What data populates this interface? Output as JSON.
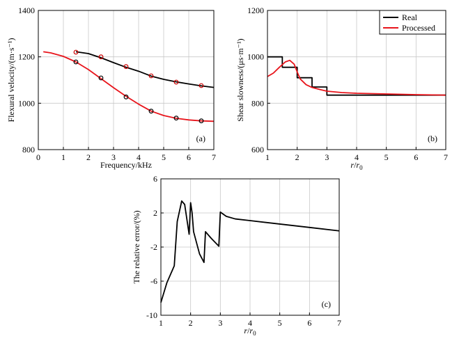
{
  "chart_data": [
    {
      "id": "a",
      "type": "line",
      "panel_label": "(a)",
      "xlabel": "Frequency/kHz",
      "ylabel": "Flexural velocity/(m·s⁻¹)",
      "xlim": [
        0,
        7
      ],
      "ylim": [
        800,
        1400
      ],
      "xticks": [
        0,
        1,
        2,
        3,
        4,
        5,
        6,
        7
      ],
      "yticks": [
        800,
        1000,
        1200,
        1400
      ],
      "grid": true,
      "series": [
        {
          "color": "#000000",
          "line_x": [
            1.5,
            2.0,
            2.5,
            3.0,
            3.5,
            4.0,
            4.5,
            5.0,
            5.5,
            6.0,
            6.5,
            7.0
          ],
          "line_y": [
            1222,
            1214,
            1196,
            1175,
            1155,
            1138,
            1117,
            1103,
            1092,
            1083,
            1075,
            1068
          ],
          "markers_x": [
            1.5,
            2.5,
            3.5,
            4.5,
            5.5,
            6.5
          ],
          "markers_y": [
            1220,
            1200,
            1158,
            1118,
            1091,
            1076
          ],
          "marker_color": "#cc0000"
        },
        {
          "color": "#e8141b",
          "line_x": [
            0.2,
            0.5,
            1.0,
            1.5,
            2.0,
            2.5,
            3.0,
            3.5,
            4.0,
            4.5,
            5.0,
            5.5,
            6.0,
            6.5,
            7.0
          ],
          "line_y": [
            1222,
            1217,
            1202,
            1178,
            1145,
            1106,
            1067,
            1030,
            996,
            966,
            947,
            935,
            928,
            924,
            922
          ],
          "markers_x": [
            1.5,
            2.5,
            3.5,
            4.5,
            5.5,
            6.5
          ],
          "markers_y": [
            1178,
            1109,
            1027,
            966,
            936,
            924
          ],
          "marker_color": "#000000"
        }
      ]
    },
    {
      "id": "b",
      "type": "line",
      "panel_label": "(b)",
      "xlabel_main": "r",
      "xlabel_div": "/",
      "xlabel_sub_base": "r",
      "xlabel_sub": "0",
      "ylabel": "Shear slowness/(μs·m⁻¹)",
      "xlim": [
        1,
        7
      ],
      "ylim": [
        600,
        1200
      ],
      "xticks": [
        1,
        2,
        3,
        4,
        5,
        6,
        7
      ],
      "yticks": [
        600,
        800,
        1000,
        1200
      ],
      "grid": true,
      "legend": {
        "position": "top-right",
        "entries": [
          "Real",
          "Processed"
        ]
      },
      "series": [
        {
          "name": "Real",
          "color": "#000000",
          "x": [
            1.0,
            1.5,
            1.5,
            2.0,
            2.0,
            2.5,
            2.5,
            3.0,
            3.0,
            7.0
          ],
          "y": [
            1000,
            1000,
            955,
            955,
            910,
            910,
            870,
            870,
            835,
            835
          ]
        },
        {
          "name": "Processed",
          "color": "#e8141b",
          "x": [
            1.0,
            1.2,
            1.4,
            1.6,
            1.75,
            1.9,
            2.0,
            2.1,
            2.3,
            2.5,
            2.8,
            3.0,
            3.5,
            4.0,
            5.0,
            6.0,
            7.0
          ],
          "y": [
            915,
            930,
            955,
            978,
            985,
            968,
            935,
            905,
            880,
            868,
            858,
            852,
            846,
            843,
            840,
            837,
            835
          ]
        }
      ]
    },
    {
      "id": "c",
      "type": "line",
      "panel_label": "(c)",
      "xlabel_main": "r",
      "xlabel_div": "/",
      "xlabel_sub_base": "r",
      "xlabel_sub": "0",
      "ylabel": "The relative error/(%)",
      "xlim": [
        1,
        7
      ],
      "ylim": [
        -10,
        6
      ],
      "xticks": [
        1,
        2,
        3,
        4,
        5,
        6,
        7
      ],
      "yticks": [
        -10,
        -6,
        -2,
        2,
        6
      ],
      "grid": true,
      "series": [
        {
          "color": "#000000",
          "x": [
            1.0,
            1.2,
            1.4,
            1.45,
            1.55,
            1.7,
            1.8,
            1.95,
            2.0,
            2.05,
            2.1,
            2.3,
            2.45,
            2.5,
            2.7,
            2.95,
            3.0,
            3.2,
            3.5,
            4.0,
            5.0,
            6.0,
            7.0
          ],
          "y": [
            -8.5,
            -6.2,
            -4.6,
            -4.2,
            1.0,
            3.4,
            3.0,
            -0.5,
            3.2,
            2.0,
            -0.2,
            -2.8,
            -3.8,
            -0.2,
            -1.0,
            -1.9,
            2.1,
            1.6,
            1.3,
            1.1,
            0.7,
            0.3,
            -0.1
          ]
        }
      ]
    }
  ]
}
